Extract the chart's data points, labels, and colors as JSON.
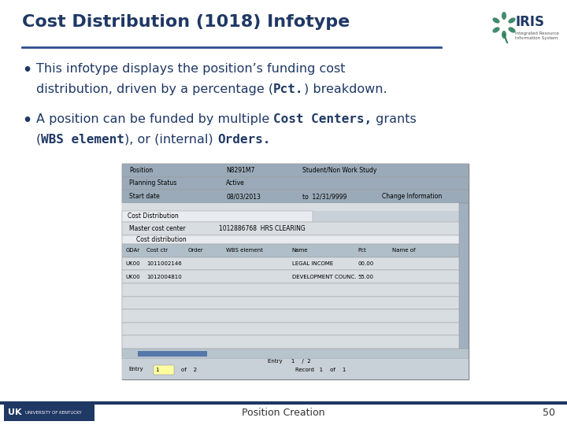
{
  "title": "Cost Distribution (1018) Infotype",
  "title_color": "#1F3864",
  "title_fontsize": 16,
  "underline_color": "#2E4E8E",
  "bg_color": "#FFFFFF",
  "bullet_color": "#1F3864",
  "bullet_fontsize": 11.5,
  "footer_bar_color": "#1F3864",
  "footer_text": "Position Creation",
  "footer_page": "50",
  "footer_fontsize": 9,
  "uk_box_color": "#1F3864",
  "iris_teal": "#2E7D5E",
  "iris_green": "#3A9A6E",
  "screenshot_bg": "#C8D0D8",
  "screenshot_header_bg": "#9AAAB8",
  "screenshot_body_bg": "#D8DDE2",
  "screenshot_white": "#E8ECF0",
  "screenshot_blue_bar": "#5577AA",
  "scr_rows": [
    [
      "Position",
      "N8291M7",
      "Student/Non Work Study"
    ],
    [
      "Planning Status",
      "Active",
      ""
    ],
    [
      "Start date",
      "08/03/2013",
      "to  12/31/9999",
      "Change Information"
    ]
  ],
  "scr_tab_headers": [
    "GDAr",
    "Cost ctr",
    "Order",
    "WBS element",
    "Name",
    "Pct",
    "Name of"
  ],
  "scr_tab_rows": [
    [
      "UK00",
      "1011002146",
      "",
      "",
      "LEGAL INCOME",
      "00.00",
      ""
    ],
    [
      "UK00",
      "1012004810",
      "",
      "",
      "DEVELOPMENT COUNC.",
      "55.00",
      ""
    ]
  ]
}
